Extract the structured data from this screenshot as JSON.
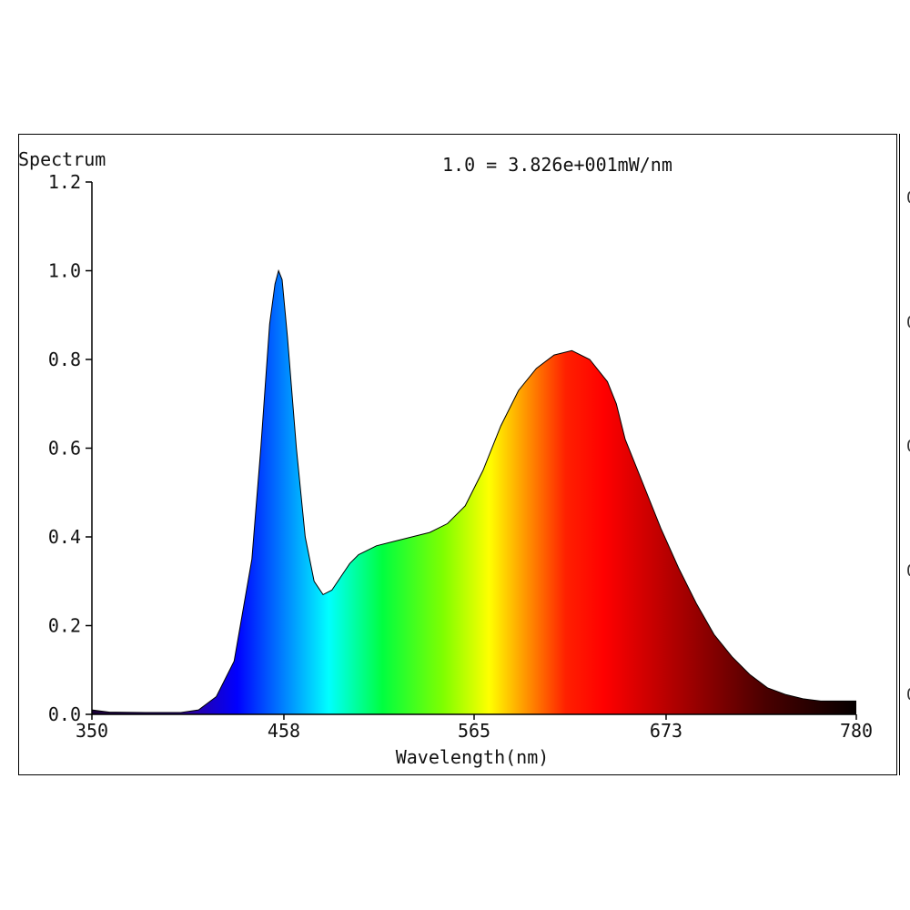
{
  "chart_data": {
    "type": "area",
    "title": "Spectrum",
    "annotation": "1.0 = 3.826e+001mW/nm",
    "xlabel": "Wavelength(nm)",
    "ylabel": "",
    "xlim": [
      350,
      780
    ],
    "ylim": [
      0,
      1.2
    ],
    "xticks": [
      "350",
      "458",
      "565",
      "673",
      "780"
    ],
    "yticks": [
      "0.0",
      "0.2",
      "0.4",
      "0.6",
      "0.8",
      "1.0",
      "1.2"
    ],
    "grid": false,
    "fill": "spectral-color-gradient",
    "x": [
      350,
      360,
      380,
      400,
      410,
      420,
      430,
      440,
      445,
      450,
      453,
      455,
      457,
      460,
      465,
      470,
      475,
      480,
      485,
      490,
      495,
      500,
      510,
      520,
      530,
      540,
      550,
      560,
      570,
      580,
      590,
      600,
      610,
      620,
      630,
      640,
      645,
      650,
      660,
      670,
      680,
      690,
      700,
      710,
      720,
      730,
      740,
      750,
      760,
      770,
      780
    ],
    "values": [
      0.01,
      0.005,
      0.004,
      0.004,
      0.01,
      0.04,
      0.12,
      0.35,
      0.6,
      0.88,
      0.97,
      1.0,
      0.98,
      0.85,
      0.6,
      0.4,
      0.3,
      0.27,
      0.28,
      0.31,
      0.34,
      0.36,
      0.38,
      0.39,
      0.4,
      0.41,
      0.43,
      0.47,
      0.55,
      0.65,
      0.73,
      0.78,
      0.81,
      0.82,
      0.8,
      0.75,
      0.7,
      0.62,
      0.52,
      0.42,
      0.33,
      0.25,
      0.18,
      0.13,
      0.09,
      0.06,
      0.045,
      0.035,
      0.03,
      0.03,
      0.03
    ]
  }
}
